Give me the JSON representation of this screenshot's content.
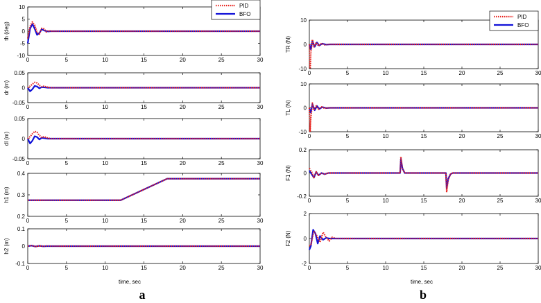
{
  "colors": {
    "pid": "#e8211c",
    "bfo": "#1010d8"
  },
  "legend": {
    "pid": "PID",
    "bfo": "BFO"
  },
  "panel_labels": {
    "left": "a",
    "right": "b"
  },
  "xlabel": "time, sec",
  "chart_data": [
    {
      "type": "line",
      "panel": "a",
      "ylabel": "th (deg)",
      "xlim": [
        0,
        30
      ],
      "ylim": [
        -10,
        10
      ],
      "xticks": [
        0,
        5,
        10,
        15,
        20,
        25,
        30
      ],
      "yticks": [
        -10,
        -5,
        0,
        5,
        10
      ],
      "legend": "top-right",
      "series": [
        {
          "name": "PID",
          "x": [
            0,
            0.3,
            0.6,
            0.9,
            1.2,
            1.5,
            1.8,
            2.1,
            2.4,
            2.7,
            3,
            30
          ],
          "y": [
            -3,
            2,
            3.8,
            2.5,
            -0.5,
            -1.2,
            1.2,
            1.0,
            -0.3,
            0.3,
            0,
            0
          ]
        },
        {
          "name": "BFO",
          "x": [
            0,
            0.3,
            0.6,
            0.9,
            1.2,
            1.5,
            1.8,
            2.2,
            2.6,
            3,
            30
          ],
          "y": [
            -5,
            1,
            3,
            1,
            -1.5,
            -0.8,
            0.8,
            0.2,
            -0.1,
            0,
            0
          ]
        }
      ]
    },
    {
      "type": "line",
      "panel": "a",
      "ylabel": "dr (m)",
      "xlim": [
        0,
        30
      ],
      "ylim": [
        -0.05,
        0.05
      ],
      "xticks": [
        0,
        5,
        10,
        15,
        20,
        25,
        30
      ],
      "yticks": [
        -0.05,
        0,
        0.05
      ],
      "series": [
        {
          "name": "PID",
          "x": [
            0,
            0.3,
            0.6,
            0.9,
            1.2,
            1.5,
            1.8,
            2.1,
            2.5,
            3,
            30
          ],
          "y": [
            0,
            0.005,
            0.012,
            0.018,
            0.016,
            0.008,
            0.003,
            0.005,
            0.002,
            0,
            0
          ]
        },
        {
          "name": "BFO",
          "x": [
            0,
            0.3,
            0.6,
            0.9,
            1.2,
            1.5,
            1.8,
            2.2,
            2.6,
            3,
            30
          ],
          "y": [
            0,
            -0.012,
            -0.005,
            0.006,
            0.004,
            -0.002,
            0.002,
            0.001,
            0,
            0,
            0
          ]
        }
      ]
    },
    {
      "type": "line",
      "panel": "a",
      "ylabel": "dl (m)",
      "xlim": [
        0,
        30
      ],
      "ylim": [
        -0.05,
        0.05
      ],
      "xticks": [
        0,
        5,
        10,
        15,
        20,
        25,
        30
      ],
      "yticks": [
        -0.05,
        0,
        0.05
      ],
      "series": [
        {
          "name": "PID",
          "x": [
            0,
            0.3,
            0.6,
            0.9,
            1.2,
            1.5,
            1.8,
            2.1,
            2.5,
            3,
            30
          ],
          "y": [
            0,
            0.005,
            0.012,
            0.018,
            0.016,
            0.008,
            0.003,
            0.005,
            0.002,
            0,
            0
          ]
        },
        {
          "name": "BFO",
          "x": [
            0,
            0.3,
            0.6,
            0.9,
            1.2,
            1.5,
            1.8,
            2.2,
            2.6,
            3,
            30
          ],
          "y": [
            0,
            -0.012,
            -0.005,
            0.006,
            0.004,
            -0.002,
            0.002,
            0.001,
            0,
            0,
            0
          ]
        }
      ]
    },
    {
      "type": "line",
      "panel": "a",
      "ylabel": "h1 (m)",
      "xlim": [
        0,
        30
      ],
      "ylim": [
        0.2,
        0.4
      ],
      "xticks": [
        0,
        5,
        10,
        15,
        20,
        25,
        30
      ],
      "yticks": [
        0.2,
        0.3,
        0.4
      ],
      "series": [
        {
          "name": "PID",
          "x": [
            0,
            12,
            18,
            30
          ],
          "y": [
            0.275,
            0.275,
            0.375,
            0.375
          ]
        },
        {
          "name": "BFO",
          "x": [
            0,
            12,
            18,
            30
          ],
          "y": [
            0.275,
            0.275,
            0.375,
            0.375
          ]
        }
      ]
    },
    {
      "type": "line",
      "panel": "a",
      "ylabel": "h2 (m)",
      "xlim": [
        0,
        30
      ],
      "ylim": [
        -0.1,
        0.1
      ],
      "xticks": [
        0,
        5,
        10,
        15,
        20,
        25,
        30
      ],
      "yticks": [
        -0.1,
        0,
        0.1
      ],
      "series": [
        {
          "name": "PID",
          "x": [
            0,
            0.5,
            1,
            1.5,
            2,
            2.5,
            3,
            30
          ],
          "y": [
            0,
            0.004,
            -0.003,
            0.002,
            -0.001,
            0.001,
            0,
            0
          ]
        },
        {
          "name": "BFO",
          "x": [
            0,
            0.5,
            1,
            1.5,
            2,
            2.5,
            3,
            30
          ],
          "y": [
            0,
            0.003,
            -0.002,
            0.002,
            -0.001,
            0,
            0,
            0
          ]
        }
      ]
    },
    {
      "type": "line",
      "panel": "b",
      "ylabel": "TR (N)",
      "xlim": [
        0,
        30
      ],
      "ylim": [
        -10,
        10
      ],
      "xticks": [
        0,
        5,
        10,
        15,
        20,
        25,
        30
      ],
      "yticks": [
        -10,
        0,
        10
      ],
      "legend": "top-right",
      "series": [
        {
          "name": "PID",
          "x": [
            0,
            0.1,
            0.2,
            0.4,
            0.6,
            0.9,
            1.2,
            1.6,
            2,
            2.5,
            30
          ],
          "y": [
            0,
            -10,
            -4,
            2,
            -1,
            0.8,
            -0.6,
            0.4,
            -0.2,
            0,
            0
          ]
        },
        {
          "name": "BFO",
          "x": [
            0,
            0.2,
            0.4,
            0.7,
            1,
            1.3,
            1.7,
            2.2,
            2.7,
            30
          ],
          "y": [
            0,
            -2,
            1.5,
            -1,
            0.8,
            -0.5,
            0.3,
            -0.1,
            0,
            0
          ]
        }
      ]
    },
    {
      "type": "line",
      "panel": "b",
      "ylabel": "TL (N)",
      "xlim": [
        0,
        30
      ],
      "ylim": [
        -10,
        10
      ],
      "xticks": [
        0,
        5,
        10,
        15,
        20,
        25,
        30
      ],
      "yticks": [
        -10,
        0,
        10
      ],
      "series": [
        {
          "name": "PID",
          "x": [
            0,
            0.1,
            0.2,
            0.4,
            0.6,
            0.9,
            1.2,
            1.6,
            2,
            2.5,
            30
          ],
          "y": [
            0,
            -10,
            -4,
            2,
            -1,
            0.8,
            -0.6,
            0.4,
            -0.2,
            0,
            0
          ]
        },
        {
          "name": "BFO",
          "x": [
            0,
            0.2,
            0.4,
            0.7,
            1,
            1.3,
            1.7,
            2.2,
            2.7,
            30
          ],
          "y": [
            0,
            -2,
            1.5,
            -1,
            0.8,
            -0.5,
            0.3,
            -0.1,
            0,
            0
          ]
        }
      ]
    },
    {
      "type": "line",
      "panel": "b",
      "ylabel": "F1 (N)",
      "xlim": [
        0,
        30
      ],
      "ylim": [
        -0.2,
        0.2
      ],
      "xticks": [
        0,
        5,
        10,
        15,
        20,
        25,
        30
      ],
      "yticks": [
        -0.2,
        0,
        0.2
      ],
      "series": [
        {
          "name": "PID",
          "x": [
            0,
            0.3,
            0.6,
            0.9,
            1.2,
            1.6,
            2,
            2.5,
            11.9,
            12,
            12.2,
            12.5,
            12.8,
            17.9,
            18,
            18.2,
            18.5,
            18.8,
            30
          ],
          "y": [
            0.04,
            0.01,
            -0.04,
            0.01,
            -0.02,
            0,
            -0.01,
            0,
            0,
            0.14,
            0.04,
            0,
            0,
            0,
            -0.16,
            -0.06,
            -0.01,
            0,
            0
          ]
        },
        {
          "name": "BFO",
          "x": [
            0,
            0.3,
            0.6,
            0.9,
            1.2,
            1.6,
            2,
            2.5,
            11.9,
            12,
            12.2,
            12.5,
            12.8,
            17.9,
            18,
            18.2,
            18.5,
            18.8,
            30
          ],
          "y": [
            0.02,
            -0.01,
            -0.04,
            0.01,
            -0.02,
            0,
            -0.01,
            0,
            0,
            0.12,
            0.04,
            0,
            0,
            0,
            -0.13,
            -0.05,
            -0.01,
            0,
            0
          ]
        }
      ]
    },
    {
      "type": "line",
      "panel": "b",
      "ylabel": "F2 (N)",
      "xlim": [
        0,
        30
      ],
      "ylim": [
        -2,
        2
      ],
      "xticks": [
        0,
        5,
        10,
        15,
        20,
        25,
        30
      ],
      "yticks": [
        -2,
        0,
        2
      ],
      "series": [
        {
          "name": "PID",
          "x": [
            0,
            0.2,
            0.6,
            1,
            1.4,
            1.8,
            2.2,
            2.6,
            3,
            3.5,
            30
          ],
          "y": [
            -0.6,
            -0.5,
            0.6,
            0.2,
            -0.3,
            0.5,
            0.1,
            -0.2,
            0.1,
            0,
            0
          ]
        },
        {
          "name": "BFO",
          "x": [
            0,
            0.2,
            0.5,
            0.8,
            1.1,
            1.4,
            1.8,
            2.2,
            2.6,
            3,
            30
          ],
          "y": [
            -0.9,
            -0.6,
            0.7,
            0.4,
            -0.4,
            0.2,
            -0.1,
            0.05,
            0,
            0,
            0
          ]
        }
      ]
    }
  ]
}
